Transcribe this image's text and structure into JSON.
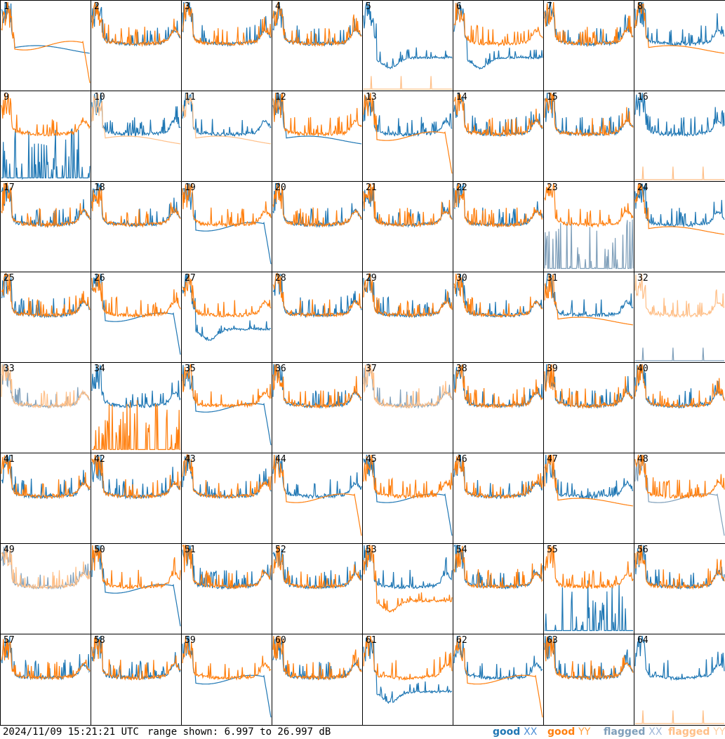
{
  "footer": {
    "timestamp": "2024/11/09 15:21:21 UTC",
    "range_text": "range shown: 6.997 to 26.997 dB"
  },
  "legend": [
    {
      "key": "good_xx",
      "word1": "good",
      "word2": "XX",
      "color1": "#1f77b4",
      "color2": "#4d8fd6"
    },
    {
      "key": "good_yy",
      "word1": "good",
      "word2": "YY",
      "color1": "#ff7f0e",
      "color2": "#ff9f3e"
    },
    {
      "key": "flagged_xx",
      "word1": "flagged",
      "word2": "XX",
      "color1": "#7f9fba",
      "color2": "#9fb7d8"
    },
    {
      "key": "flagged_yy",
      "word1": "flagged",
      "word2": "YY",
      "color1": "#ffbf87",
      "color2": "#ffcfa0"
    }
  ],
  "colors": {
    "good_xx": "#1f77b4",
    "good_yy": "#ff7f0e",
    "flagged_xx": "#7f9fba",
    "flagged_yy": "#ffbf87"
  },
  "chart_data": {
    "type": "line",
    "range_db": [
      6.997,
      26.997
    ],
    "grid": false,
    "legend_position": "bottom-right",
    "panels": [
      {
        "label": "1",
        "xx": "good",
        "yy": "good",
        "xx_shape": "dip",
        "yy_shape": "dropout"
      },
      {
        "label": "2",
        "xx": "good",
        "yy": "good",
        "xx_shape": "normal",
        "yy_shape": "normal"
      },
      {
        "label": "3",
        "xx": "good",
        "yy": "good",
        "xx_shape": "normal",
        "yy_shape": "normal"
      },
      {
        "label": "4",
        "xx": "good",
        "yy": "good",
        "xx_shape": "normal",
        "yy_shape": "normal"
      },
      {
        "label": "5",
        "xx": "good",
        "yy": "flagged",
        "xx_shape": "hump",
        "yy_shape": "flat"
      },
      {
        "label": "6",
        "xx": "good",
        "yy": "good",
        "xx_shape": "hump",
        "yy_shape": "normal"
      },
      {
        "label": "7",
        "xx": "good",
        "yy": "good",
        "xx_shape": "normal",
        "yy_shape": "normal"
      },
      {
        "label": "8",
        "xx": "good",
        "yy": "good",
        "xx_shape": "normal",
        "yy_shape": "dip"
      },
      {
        "label": "9",
        "xx": "good",
        "yy": "good",
        "xx_shape": "spikes_low",
        "yy_shape": "normal"
      },
      {
        "label": "10",
        "xx": "good",
        "yy": "flagged",
        "xx_shape": "normal",
        "yy_shape": "dip"
      },
      {
        "label": "11",
        "xx": "good",
        "yy": "flagged",
        "xx_shape": "normal",
        "yy_shape": "dip"
      },
      {
        "label": "12",
        "xx": "good",
        "yy": "good",
        "xx_shape": "dip",
        "yy_shape": "normal"
      },
      {
        "label": "13",
        "xx": "good",
        "yy": "good",
        "xx_shape": "normal",
        "yy_shape": "dropout"
      },
      {
        "label": "14",
        "xx": "good",
        "yy": "good",
        "xx_shape": "normal",
        "yy_shape": "normal"
      },
      {
        "label": "15",
        "xx": "good",
        "yy": "good",
        "xx_shape": "normal",
        "yy_shape": "normal"
      },
      {
        "label": "16",
        "xx": "good",
        "yy": "flagged",
        "xx_shape": "normal",
        "yy_shape": "flat"
      },
      {
        "label": "17",
        "xx": "good",
        "yy": "good",
        "xx_shape": "normal",
        "yy_shape": "normal"
      },
      {
        "label": "18",
        "xx": "good",
        "yy": "good",
        "xx_shape": "normal",
        "yy_shape": "normal"
      },
      {
        "label": "19",
        "xx": "good",
        "yy": "good",
        "xx_shape": "dropout",
        "yy_shape": "normal"
      },
      {
        "label": "20",
        "xx": "good",
        "yy": "good",
        "xx_shape": "normal",
        "yy_shape": "normal"
      },
      {
        "label": "21",
        "xx": "good",
        "yy": "good",
        "xx_shape": "normal",
        "yy_shape": "normal"
      },
      {
        "label": "22",
        "xx": "good",
        "yy": "good",
        "xx_shape": "normal",
        "yy_shape": "normal"
      },
      {
        "label": "23",
        "xx": "flagged",
        "yy": "good",
        "xx_shape": "spikes_low",
        "yy_shape": "normal"
      },
      {
        "label": "24",
        "xx": "good",
        "yy": "good",
        "xx_shape": "normal",
        "yy_shape": "dip"
      },
      {
        "label": "25",
        "xx": "good",
        "yy": "good",
        "xx_shape": "normal",
        "yy_shape": "normal"
      },
      {
        "label": "26",
        "xx": "good",
        "yy": "good",
        "xx_shape": "dropout",
        "yy_shape": "normal"
      },
      {
        "label": "27",
        "xx": "good",
        "yy": "good",
        "xx_shape": "hump",
        "yy_shape": "normal"
      },
      {
        "label": "28",
        "xx": "good",
        "yy": "good",
        "xx_shape": "normal",
        "yy_shape": "normal"
      },
      {
        "label": "29",
        "xx": "good",
        "yy": "good",
        "xx_shape": "normal",
        "yy_shape": "normal"
      },
      {
        "label": "30",
        "xx": "good",
        "yy": "good",
        "xx_shape": "normal",
        "yy_shape": "normal"
      },
      {
        "label": "31",
        "xx": "good",
        "yy": "good",
        "xx_shape": "normal",
        "yy_shape": "dip"
      },
      {
        "label": "32",
        "xx": "flagged",
        "yy": "flagged",
        "xx_shape": "flat",
        "yy_shape": "normal"
      },
      {
        "label": "33",
        "xx": "flagged",
        "yy": "flagged",
        "xx_shape": "normal",
        "yy_shape": "normal"
      },
      {
        "label": "34",
        "xx": "good",
        "yy": "good",
        "xx_shape": "normal",
        "yy_shape": "spikes_low"
      },
      {
        "label": "35",
        "xx": "good",
        "yy": "good",
        "xx_shape": "dropout",
        "yy_shape": "normal"
      },
      {
        "label": "36",
        "xx": "good",
        "yy": "good",
        "xx_shape": "normal",
        "yy_shape": "normal"
      },
      {
        "label": "37",
        "xx": "flagged",
        "yy": "flagged",
        "xx_shape": "normal",
        "yy_shape": "normal"
      },
      {
        "label": "38",
        "xx": "good",
        "yy": "good",
        "xx_shape": "normal",
        "yy_shape": "normal"
      },
      {
        "label": "39",
        "xx": "good",
        "yy": "good",
        "xx_shape": "normal",
        "yy_shape": "normal"
      },
      {
        "label": "40",
        "xx": "good",
        "yy": "good",
        "xx_shape": "normal",
        "yy_shape": "normal"
      },
      {
        "label": "41",
        "xx": "good",
        "yy": "good",
        "xx_shape": "normal",
        "yy_shape": "normal"
      },
      {
        "label": "42",
        "xx": "good",
        "yy": "good",
        "xx_shape": "normal",
        "yy_shape": "normal"
      },
      {
        "label": "43",
        "xx": "good",
        "yy": "good",
        "xx_shape": "normal",
        "yy_shape": "normal"
      },
      {
        "label": "44",
        "xx": "good",
        "yy": "good",
        "xx_shape": "normal",
        "yy_shape": "dropout"
      },
      {
        "label": "45",
        "xx": "good",
        "yy": "good",
        "xx_shape": "dropout",
        "yy_shape": "normal"
      },
      {
        "label": "46",
        "xx": "good",
        "yy": "good",
        "xx_shape": "normal",
        "yy_shape": "normal"
      },
      {
        "label": "47",
        "xx": "good",
        "yy": "good",
        "xx_shape": "normal",
        "yy_shape": "dip"
      },
      {
        "label": "48",
        "xx": "flagged",
        "yy": "good",
        "xx_shape": "dropout",
        "yy_shape": "normal"
      },
      {
        "label": "49",
        "xx": "flagged",
        "yy": "flagged",
        "xx_shape": "normal",
        "yy_shape": "normal"
      },
      {
        "label": "50",
        "xx": "good",
        "yy": "good",
        "xx_shape": "dropout",
        "yy_shape": "normal"
      },
      {
        "label": "51",
        "xx": "good",
        "yy": "good",
        "xx_shape": "normal",
        "yy_shape": "normal"
      },
      {
        "label": "52",
        "xx": "good",
        "yy": "good",
        "xx_shape": "normal",
        "yy_shape": "normal"
      },
      {
        "label": "53",
        "xx": "good",
        "yy": "good",
        "xx_shape": "normal",
        "yy_shape": "hump"
      },
      {
        "label": "54",
        "xx": "good",
        "yy": "good",
        "xx_shape": "normal",
        "yy_shape": "normal"
      },
      {
        "label": "55",
        "xx": "good",
        "yy": "good",
        "xx_shape": "spikes_low",
        "yy_shape": "normal"
      },
      {
        "label": "56",
        "xx": "good",
        "yy": "good",
        "xx_shape": "normal",
        "yy_shape": "normal"
      },
      {
        "label": "57",
        "xx": "good",
        "yy": "good",
        "xx_shape": "normal",
        "yy_shape": "normal"
      },
      {
        "label": "58",
        "xx": "good",
        "yy": "good",
        "xx_shape": "normal",
        "yy_shape": "normal"
      },
      {
        "label": "59",
        "xx": "good",
        "yy": "good",
        "xx_shape": "dropout",
        "yy_shape": "normal"
      },
      {
        "label": "60",
        "xx": "good",
        "yy": "good",
        "xx_shape": "normal",
        "yy_shape": "normal"
      },
      {
        "label": "61",
        "xx": "good",
        "yy": "good",
        "xx_shape": "hump",
        "yy_shape": "normal"
      },
      {
        "label": "62",
        "xx": "good",
        "yy": "good",
        "xx_shape": "normal",
        "yy_shape": "dropout"
      },
      {
        "label": "63",
        "xx": "good",
        "yy": "good",
        "xx_shape": "normal",
        "yy_shape": "normal"
      },
      {
        "label": "64",
        "xx": "good",
        "yy": "flagged",
        "xx_shape": "normal",
        "yy_shape": "flat"
      }
    ]
  }
}
